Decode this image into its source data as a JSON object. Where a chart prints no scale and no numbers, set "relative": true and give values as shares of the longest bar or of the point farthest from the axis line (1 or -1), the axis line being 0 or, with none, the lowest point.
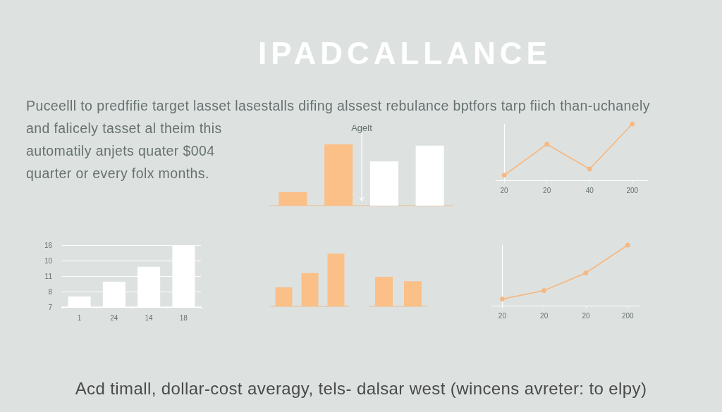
{
  "chart_data": [
    {
      "type": "other",
      "title": "IPADCALLANCE",
      "annotations": [
        "Puceelll to predfifie target lasset lasestalls difing alssest rebulance bptfors tarp fiich than-uchanely",
        "and falicely tasset al theim this",
        "automatily anjets quater $004",
        "quarter or every folx months."
      ]
    },
    {
      "type": "bar",
      "categories": [
        null,
        null,
        null,
        null
      ],
      "values": [
        0.22,
        1,
        0.72,
        0.98
      ],
      "colors": [
        "#fbbf88",
        "#fbbf88",
        "#ffffff",
        "#ffffff"
      ],
      "relative": true,
      "annotations": [
        "Agelt"
      ]
    },
    {
      "type": "line",
      "categories": [
        "20",
        "20",
        "40",
        "200"
      ],
      "values": [
        0.09,
        0.64,
        0.2,
        1
      ],
      "color": "#f7b881",
      "relative": true,
      "marker": "circle"
    },
    {
      "type": "bar",
      "categories": [
        "1",
        "24",
        "14",
        "18"
      ],
      "values": [
        0.17,
        0.41,
        0.65,
        1
      ],
      "color": "#ffffff",
      "relative": true,
      "grid": "y",
      "annotations": [
        "16",
        "10",
        "11",
        "8",
        "7"
      ]
    },
    {
      "type": "bar",
      "categories": [
        null,
        null,
        null
      ],
      "values": [
        0.36,
        0.63,
        1
      ],
      "color": "#fbbf88",
      "relative": true
    },
    {
      "type": "bar",
      "categories": [
        null,
        null
      ],
      "values": [
        1,
        0.85
      ],
      "color": "#fbbf88",
      "relative": true
    },
    {
      "type": "line",
      "categories": [
        "20",
        "20",
        "20",
        "200"
      ],
      "values": [
        0.11,
        0.25,
        0.54,
        1
      ],
      "color": "#f7b881",
      "relative": true,
      "marker": "circle"
    },
    {
      "type": "other",
      "annotations": [
        "Acd timall, dollar-cost averagy, tels- dalsar west (wincens avreter: to elpy)"
      ]
    }
  ]
}
